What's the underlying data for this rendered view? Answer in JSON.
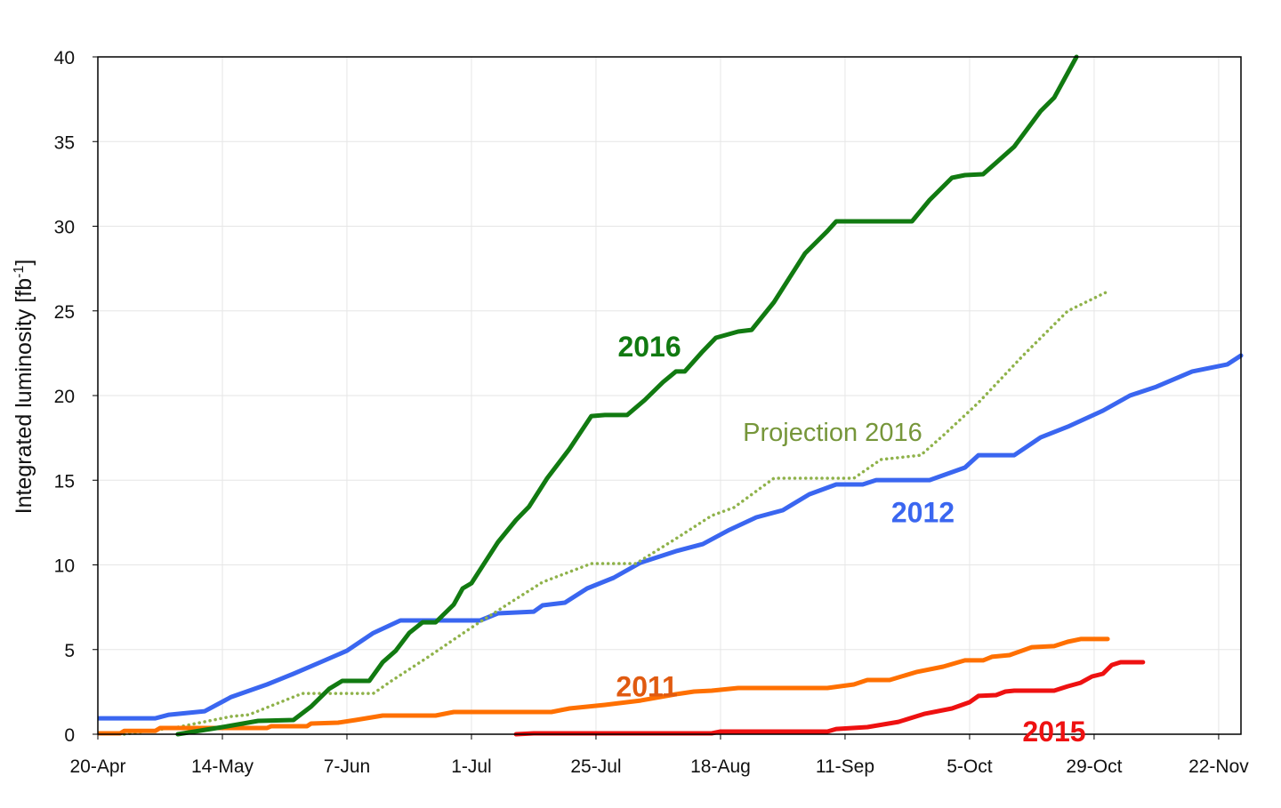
{
  "chart_data": {
    "type": "line",
    "title": "",
    "xlabel": "",
    "ylabel": "Integrated luminosity [fb",
    "ylabel_sup": "-1",
    "ylabel_end": "]",
    "x_unit": "days since 20-Apr",
    "xlim": [
      0,
      220.3
    ],
    "ylim": [
      0,
      40
    ],
    "yticks": [
      0,
      5,
      10,
      15,
      20,
      25,
      30,
      35,
      40
    ],
    "xticks": [
      {
        "day": 0,
        "label": "20-Apr"
      },
      {
        "day": 24,
        "label": "14-May"
      },
      {
        "day": 48,
        "label": "7-Jun"
      },
      {
        "day": 72,
        "label": "1-Jul"
      },
      {
        "day": 96,
        "label": "25-Jul"
      },
      {
        "day": 120,
        "label": "18-Aug"
      },
      {
        "day": 144,
        "label": "11-Sep"
      },
      {
        "day": 168,
        "label": "5-Oct"
      },
      {
        "day": 192,
        "label": "29-Oct"
      },
      {
        "day": 216,
        "label": "22-Nov"
      }
    ],
    "grid": true,
    "series": [
      {
        "name": "2012",
        "label": "2012",
        "color": "#3a66f0",
        "style": "solid",
        "label_pos": [
          159,
          13.1
        ],
        "points": [
          [
            0,
            0.94
          ],
          [
            11.1,
            0.94
          ],
          [
            13.7,
            1.15
          ],
          [
            20.6,
            1.36
          ],
          [
            25.7,
            2.2
          ],
          [
            32.6,
            2.94
          ],
          [
            37.7,
            3.57
          ],
          [
            42.9,
            4.25
          ],
          [
            48,
            4.93
          ],
          [
            53.1,
            5.98
          ],
          [
            58.3,
            6.72
          ],
          [
            73.7,
            6.72
          ],
          [
            77.1,
            7.14
          ],
          [
            84,
            7.24
          ],
          [
            85.7,
            7.61
          ],
          [
            90,
            7.77
          ],
          [
            94.3,
            8.61
          ],
          [
            99.4,
            9.24
          ],
          [
            104.6,
            10.13
          ],
          [
            111.4,
            10.81
          ],
          [
            116.6,
            11.23
          ],
          [
            121.7,
            12.07
          ],
          [
            126.9,
            12.81
          ],
          [
            132,
            13.23
          ],
          [
            137.1,
            14.17
          ],
          [
            142.3,
            14.75
          ],
          [
            147.4,
            14.75
          ],
          [
            150,
            15.01
          ],
          [
            160.3,
            15.01
          ],
          [
            167.1,
            15.75
          ],
          [
            169.7,
            16.48
          ],
          [
            176.6,
            16.48
          ],
          [
            181.7,
            17.53
          ],
          [
            186.9,
            18.16
          ],
          [
            193.7,
            19.11
          ],
          [
            198.9,
            20
          ],
          [
            204,
            20.52
          ],
          [
            210.9,
            21.42
          ],
          [
            217.7,
            21.84
          ],
          [
            220.3,
            22.36
          ]
        ]
      },
      {
        "name": "Projection 2016",
        "label": "Projection 2016",
        "color": "#8fb24a",
        "text_color": "#76963a",
        "style": "dotted",
        "label_pos": [
          141.6,
          17.9
        ],
        "points": [
          [
            5.1,
            0
          ],
          [
            15.4,
            0.42
          ],
          [
            25.7,
            1.05
          ],
          [
            29.1,
            1.15
          ],
          [
            39.4,
            2.41
          ],
          [
            53.1,
            2.41
          ],
          [
            56.6,
            3.15
          ],
          [
            63.4,
            4.51
          ],
          [
            72,
            6.3
          ],
          [
            78.9,
            7.66
          ],
          [
            85.7,
            8.98
          ],
          [
            95.1,
            10.08
          ],
          [
            103.7,
            10.08
          ],
          [
            111.4,
            11.55
          ],
          [
            118.3,
            12.91
          ],
          [
            122.6,
            13.39
          ],
          [
            130.3,
            15.12
          ],
          [
            145.7,
            15.12
          ],
          [
            150.9,
            16.22
          ],
          [
            158.6,
            16.48
          ],
          [
            162.9,
            17.64
          ],
          [
            169.7,
            19.58
          ],
          [
            178.3,
            22.36
          ],
          [
            186.9,
            24.99
          ],
          [
            194.6,
            26.14
          ]
        ]
      },
      {
        "name": "2011",
        "label": "2011",
        "color": "#ff7000",
        "text_color": "#e05a10",
        "style": "solid",
        "label_pos": [
          105.8,
          2.8
        ],
        "points": [
          [
            0,
            0.05
          ],
          [
            4.3,
            0.05
          ],
          [
            5.1,
            0.2
          ],
          [
            11.1,
            0.2
          ],
          [
            12,
            0.37
          ],
          [
            32.6,
            0.37
          ],
          [
            33.4,
            0.47
          ],
          [
            40.3,
            0.47
          ],
          [
            41.1,
            0.63
          ],
          [
            46.3,
            0.68
          ],
          [
            49.7,
            0.84
          ],
          [
            54.9,
            1.1
          ],
          [
            65.1,
            1.1
          ],
          [
            68.6,
            1.31
          ],
          [
            87.4,
            1.31
          ],
          [
            90.9,
            1.52
          ],
          [
            97.7,
            1.73
          ],
          [
            104.6,
            1.99
          ],
          [
            111.4,
            2.36
          ],
          [
            114.9,
            2.52
          ],
          [
            118.3,
            2.57
          ],
          [
            123.4,
            2.73
          ],
          [
            140.6,
            2.73
          ],
          [
            145.7,
            2.94
          ],
          [
            148.3,
            3.2
          ],
          [
            152.6,
            3.2
          ],
          [
            157.7,
            3.67
          ],
          [
            162.9,
            3.99
          ],
          [
            167.1,
            4.36
          ],
          [
            170.6,
            4.36
          ],
          [
            172.3,
            4.57
          ],
          [
            175.7,
            4.67
          ],
          [
            180,
            5.14
          ],
          [
            184.3,
            5.2
          ],
          [
            186.9,
            5.46
          ],
          [
            189.4,
            5.62
          ],
          [
            194.6,
            5.62
          ]
        ]
      },
      {
        "name": "2015",
        "label": "2015",
        "color": "#ee1111",
        "style": "solid",
        "label_pos": [
          184.3,
          0.15
        ],
        "points": [
          [
            80.6,
            0
          ],
          [
            84,
            0.05
          ],
          [
            118.3,
            0.05
          ],
          [
            120,
            0.16
          ],
          [
            140.6,
            0.16
          ],
          [
            142.3,
            0.31
          ],
          [
            148.3,
            0.42
          ],
          [
            154.3,
            0.73
          ],
          [
            159.4,
            1.21
          ],
          [
            164.6,
            1.52
          ],
          [
            168,
            1.89
          ],
          [
            169.7,
            2.26
          ],
          [
            173.1,
            2.31
          ],
          [
            174.9,
            2.52
          ],
          [
            176.6,
            2.57
          ],
          [
            184.3,
            2.57
          ],
          [
            186.9,
            2.83
          ],
          [
            189.4,
            3.04
          ],
          [
            191.6,
            3.41
          ],
          [
            193.7,
            3.57
          ],
          [
            195.4,
            4.09
          ],
          [
            197.1,
            4.25
          ],
          [
            201.4,
            4.25
          ]
        ]
      },
      {
        "name": "2016",
        "label": "2016",
        "color": "#117a11",
        "style": "solid",
        "label_pos": [
          106.3,
          22.9
        ],
        "points": [
          [
            15.4,
            0
          ],
          [
            24,
            0.42
          ],
          [
            30.9,
            0.79
          ],
          [
            37.7,
            0.84
          ],
          [
            41.1,
            1.63
          ],
          [
            44.6,
            2.68
          ],
          [
            47.1,
            3.15
          ],
          [
            52.3,
            3.15
          ],
          [
            54.9,
            4.25
          ],
          [
            57.4,
            4.93
          ],
          [
            60,
            5.98
          ],
          [
            62.6,
            6.61
          ],
          [
            65.1,
            6.61
          ],
          [
            68.6,
            7.66
          ],
          [
            70.3,
            8.61
          ],
          [
            72,
            8.92
          ],
          [
            77.1,
            11.34
          ],
          [
            80.6,
            12.65
          ],
          [
            83.1,
            13.44
          ],
          [
            86.6,
            15.12
          ],
          [
            90.9,
            16.85
          ],
          [
            95.1,
            18.79
          ],
          [
            97.7,
            18.85
          ],
          [
            102,
            18.85
          ],
          [
            105.4,
            19.74
          ],
          [
            108.9,
            20.79
          ],
          [
            111.4,
            21.42
          ],
          [
            113.1,
            21.42
          ],
          [
            116.6,
            22.62
          ],
          [
            119.1,
            23.41
          ],
          [
            123.4,
            23.78
          ],
          [
            126,
            23.88
          ],
          [
            130.3,
            25.51
          ],
          [
            136.3,
            28.4
          ],
          [
            140.6,
            29.71
          ],
          [
            142.3,
            30.29
          ],
          [
            156.9,
            30.29
          ],
          [
            160.3,
            31.55
          ],
          [
            164.6,
            32.86
          ],
          [
            167.1,
            33.02
          ],
          [
            170.6,
            33.07
          ],
          [
            173.1,
            33.75
          ],
          [
            176.6,
            34.7
          ],
          [
            181.7,
            36.8
          ],
          [
            184.3,
            37.59
          ],
          [
            188.6,
            40
          ]
        ]
      }
    ]
  }
}
